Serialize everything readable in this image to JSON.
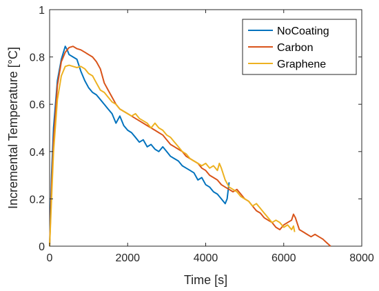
{
  "chart_data": {
    "type": "line",
    "xlabel": "Time [s]",
    "ylabel": "Incremental Temperature [°C]",
    "xlim": [
      0,
      8000
    ],
    "ylim": [
      0,
      1
    ],
    "xticks": [
      0,
      2000,
      4000,
      6000,
      8000
    ],
    "yticks": [
      0,
      0.2,
      0.4,
      0.6,
      0.8,
      1
    ],
    "xtick_labels": [
      "0",
      "2000",
      "4000",
      "6000",
      "8000"
    ],
    "ytick_labels": [
      "0",
      "0.2",
      "0.4",
      "0.6",
      "0.8",
      "1"
    ],
    "grid": false,
    "legend_position": "top-right",
    "series": [
      {
        "name": "NoCoating",
        "color": "#0072BD",
        "points": [
          [
            0,
            0
          ],
          [
            50,
            0.3
          ],
          [
            100,
            0.5
          ],
          [
            200,
            0.7
          ],
          [
            300,
            0.79
          ],
          [
            400,
            0.845
          ],
          [
            450,
            0.83
          ],
          [
            500,
            0.81
          ],
          [
            600,
            0.8
          ],
          [
            700,
            0.79
          ],
          [
            800,
            0.74
          ],
          [
            900,
            0.7
          ],
          [
            1000,
            0.67
          ],
          [
            1100,
            0.65
          ],
          [
            1200,
            0.64
          ],
          [
            1300,
            0.62
          ],
          [
            1400,
            0.6
          ],
          [
            1500,
            0.58
          ],
          [
            1600,
            0.56
          ],
          [
            1700,
            0.52
          ],
          [
            1800,
            0.55
          ],
          [
            1900,
            0.51
          ],
          [
            2000,
            0.49
          ],
          [
            2100,
            0.48
          ],
          [
            2200,
            0.46
          ],
          [
            2300,
            0.44
          ],
          [
            2400,
            0.45
          ],
          [
            2500,
            0.42
          ],
          [
            2600,
            0.43
          ],
          [
            2700,
            0.41
          ],
          [
            2800,
            0.4
          ],
          [
            2900,
            0.42
          ],
          [
            3000,
            0.4
          ],
          [
            3100,
            0.38
          ],
          [
            3200,
            0.37
          ],
          [
            3300,
            0.36
          ],
          [
            3400,
            0.34
          ],
          [
            3500,
            0.33
          ],
          [
            3600,
            0.32
          ],
          [
            3700,
            0.31
          ],
          [
            3800,
            0.28
          ],
          [
            3900,
            0.29
          ],
          [
            4000,
            0.26
          ],
          [
            4100,
            0.25
          ],
          [
            4200,
            0.23
          ],
          [
            4300,
            0.22
          ],
          [
            4400,
            0.2
          ],
          [
            4500,
            0.18
          ],
          [
            4550,
            0.2
          ],
          [
            4600,
            0.27
          ]
        ]
      },
      {
        "name": "Carbon",
        "color": "#D95319",
        "points": [
          [
            0,
            0
          ],
          [
            50,
            0.25
          ],
          [
            100,
            0.45
          ],
          [
            200,
            0.68
          ],
          [
            300,
            0.78
          ],
          [
            400,
            0.82
          ],
          [
            500,
            0.84
          ],
          [
            600,
            0.845
          ],
          [
            700,
            0.835
          ],
          [
            800,
            0.83
          ],
          [
            900,
            0.82
          ],
          [
            1000,
            0.81
          ],
          [
            1100,
            0.8
          ],
          [
            1200,
            0.78
          ],
          [
            1300,
            0.75
          ],
          [
            1400,
            0.69
          ],
          [
            1500,
            0.66
          ],
          [
            1600,
            0.63
          ],
          [
            1700,
            0.6
          ],
          [
            1800,
            0.58
          ],
          [
            1900,
            0.57
          ],
          [
            2000,
            0.56
          ],
          [
            2100,
            0.55
          ],
          [
            2200,
            0.54
          ],
          [
            2300,
            0.53
          ],
          [
            2400,
            0.52
          ],
          [
            2500,
            0.51
          ],
          [
            2600,
            0.5
          ],
          [
            2700,
            0.49
          ],
          [
            2800,
            0.48
          ],
          [
            2900,
            0.47
          ],
          [
            3000,
            0.45
          ],
          [
            3100,
            0.43
          ],
          [
            3200,
            0.42
          ],
          [
            3300,
            0.41
          ],
          [
            3400,
            0.4
          ],
          [
            3500,
            0.38
          ],
          [
            3600,
            0.37
          ],
          [
            3700,
            0.36
          ],
          [
            3800,
            0.35
          ],
          [
            3900,
            0.33
          ],
          [
            4000,
            0.32
          ],
          [
            4100,
            0.3
          ],
          [
            4200,
            0.29
          ],
          [
            4300,
            0.28
          ],
          [
            4400,
            0.26
          ],
          [
            4500,
            0.25
          ],
          [
            4600,
            0.24
          ],
          [
            4700,
            0.23
          ],
          [
            4800,
            0.24
          ],
          [
            4900,
            0.22
          ],
          [
            5000,
            0.2
          ],
          [
            5100,
            0.19
          ],
          [
            5200,
            0.17
          ],
          [
            5300,
            0.15
          ],
          [
            5400,
            0.14
          ],
          [
            5500,
            0.12
          ],
          [
            5600,
            0.11
          ],
          [
            5700,
            0.1
          ],
          [
            5800,
            0.08
          ],
          [
            5900,
            0.07
          ],
          [
            6000,
            0.09
          ],
          [
            6100,
            0.1
          ],
          [
            6200,
            0.11
          ],
          [
            6250,
            0.135
          ],
          [
            6300,
            0.12
          ],
          [
            6400,
            0.07
          ],
          [
            6500,
            0.06
          ],
          [
            6600,
            0.05
          ],
          [
            6700,
            0.04
          ],
          [
            6800,
            0.05
          ],
          [
            6900,
            0.04
          ],
          [
            7000,
            0.03
          ],
          [
            7100,
            0.015
          ],
          [
            7200,
            0
          ]
        ]
      },
      {
        "name": "Graphene",
        "color": "#EDB120",
        "points": [
          [
            0,
            0
          ],
          [
            50,
            0.2
          ],
          [
            100,
            0.4
          ],
          [
            200,
            0.62
          ],
          [
            300,
            0.72
          ],
          [
            400,
            0.76
          ],
          [
            500,
            0.765
          ],
          [
            600,
            0.76
          ],
          [
            700,
            0.755
          ],
          [
            800,
            0.76
          ],
          [
            900,
            0.75
          ],
          [
            1000,
            0.73
          ],
          [
            1100,
            0.72
          ],
          [
            1200,
            0.69
          ],
          [
            1300,
            0.66
          ],
          [
            1400,
            0.65
          ],
          [
            1500,
            0.63
          ],
          [
            1600,
            0.61
          ],
          [
            1700,
            0.6
          ],
          [
            1800,
            0.58
          ],
          [
            1900,
            0.57
          ],
          [
            2000,
            0.56
          ],
          [
            2100,
            0.55
          ],
          [
            2200,
            0.56
          ],
          [
            2300,
            0.54
          ],
          [
            2400,
            0.53
          ],
          [
            2500,
            0.52
          ],
          [
            2600,
            0.5
          ],
          [
            2700,
            0.52
          ],
          [
            2800,
            0.5
          ],
          [
            2900,
            0.49
          ],
          [
            3000,
            0.47
          ],
          [
            3100,
            0.46
          ],
          [
            3200,
            0.44
          ],
          [
            3300,
            0.42
          ],
          [
            3400,
            0.4
          ],
          [
            3500,
            0.39
          ],
          [
            3600,
            0.37
          ],
          [
            3700,
            0.36
          ],
          [
            3800,
            0.35
          ],
          [
            3900,
            0.34
          ],
          [
            4000,
            0.35
          ],
          [
            4100,
            0.33
          ],
          [
            4200,
            0.34
          ],
          [
            4300,
            0.32
          ],
          [
            4350,
            0.35
          ],
          [
            4400,
            0.33
          ],
          [
            4500,
            0.28
          ],
          [
            4600,
            0.25
          ],
          [
            4700,
            0.24
          ],
          [
            4800,
            0.23
          ],
          [
            4900,
            0.21
          ],
          [
            5000,
            0.2
          ],
          [
            5100,
            0.19
          ],
          [
            5200,
            0.17
          ],
          [
            5300,
            0.18
          ],
          [
            5400,
            0.16
          ],
          [
            5500,
            0.14
          ],
          [
            5600,
            0.12
          ],
          [
            5700,
            0.1
          ],
          [
            5800,
            0.11
          ],
          [
            5900,
            0.1
          ],
          [
            6000,
            0.08
          ],
          [
            6100,
            0.09
          ],
          [
            6200,
            0.07
          ],
          [
            6250,
            0.085
          ],
          [
            6280,
            0.06
          ]
        ]
      }
    ]
  }
}
